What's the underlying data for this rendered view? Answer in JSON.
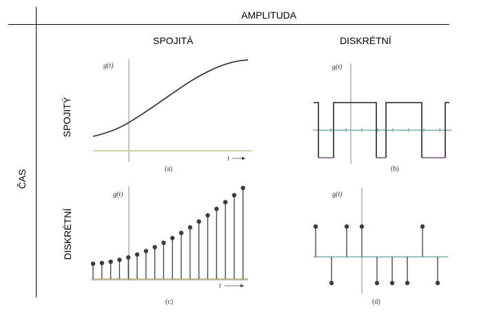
{
  "header": {
    "amplitude": "AMPLITUDA",
    "continuous": "SPOJITÁ",
    "discrete": "DISKRÉTNÍ"
  },
  "rows": {
    "time": "ČAS",
    "continuous": "SPOJITÝ",
    "discrete": "DISKRÉTNÍ"
  },
  "panels": {
    "a": {
      "ylabel": "g(t)",
      "xlabel": "t",
      "caption": "(a)"
    },
    "b": {
      "ylabel": "g(t)",
      "caption": "(b)"
    },
    "c": {
      "ylabel": "g(t)",
      "xlabel": "t",
      "caption": "(c)"
    },
    "d": {
      "ylabel": "g(t)",
      "caption": "(d)"
    }
  },
  "colors": {
    "axis": "#8a8a8a",
    "baseline_green": "#b5b56a",
    "signal": "#3b3b3b",
    "teal": "#5f9ea0",
    "purple": "#8e6a94"
  }
}
